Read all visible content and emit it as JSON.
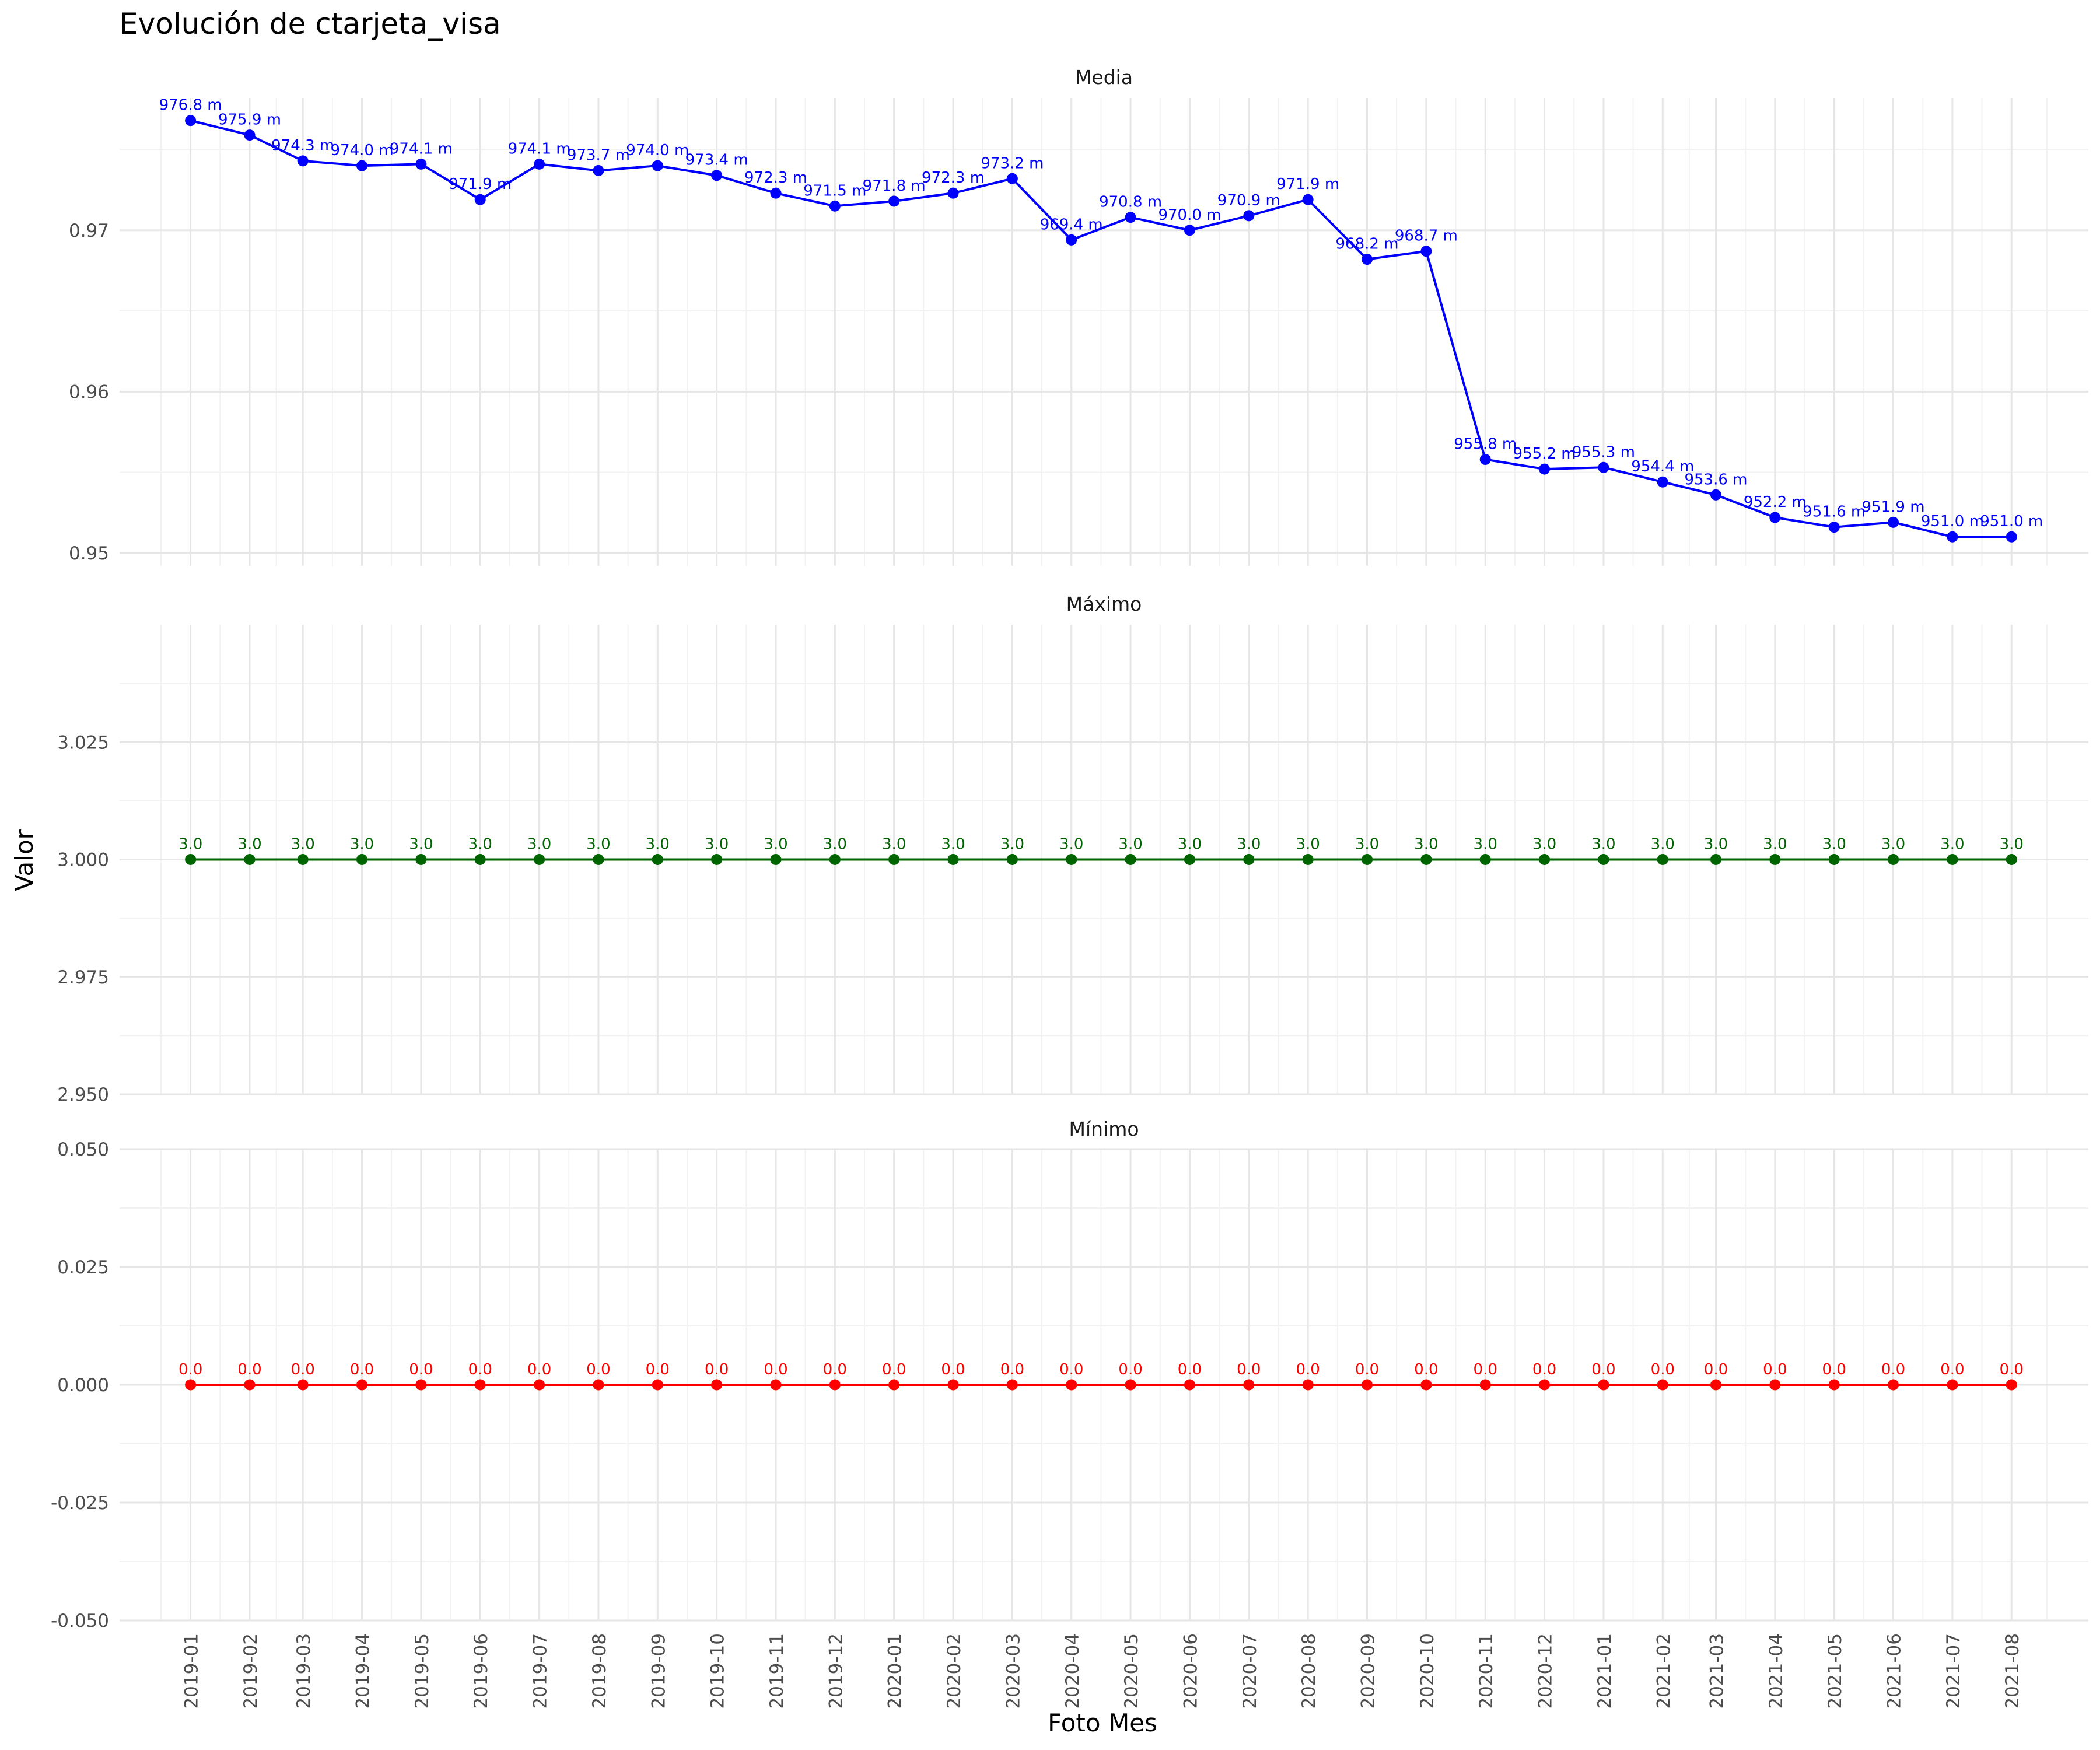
{
  "title": "Evolución de ctarjeta_visa",
  "xlabel": "Foto Mes",
  "ylabel": "Valor",
  "chart_data": {
    "type": "line",
    "categories": [
      "2019-01",
      "2019-02",
      "2019-03",
      "2019-04",
      "2019-05",
      "2019-06",
      "2019-07",
      "2019-08",
      "2019-09",
      "2019-10",
      "2019-11",
      "2019-12",
      "2020-01",
      "2020-02",
      "2020-03",
      "2020-04",
      "2020-05",
      "2020-06",
      "2020-07",
      "2020-08",
      "2020-09",
      "2020-10",
      "2020-11",
      "2020-12",
      "2021-01",
      "2021-02",
      "2021-03",
      "2021-04",
      "2021-05",
      "2021-06",
      "2021-07",
      "2021-08"
    ],
    "x_positions": [
      0,
      1,
      1.9,
      2.9,
      3.9,
      4.9,
      5.9,
      6.9,
      7.9,
      8.9,
      9.9,
      10.9,
      11.9,
      12.9,
      13.9,
      14.9,
      15.9,
      16.9,
      17.9,
      18.9,
      19.9,
      20.9,
      21.9,
      22.9,
      23.9,
      24.9,
      25.8,
      26.8,
      27.8,
      28.8,
      29.8,
      30.8
    ],
    "x_range": [
      -1.2,
      32.1
    ],
    "grid": true,
    "panels": [
      {
        "strip": "Media",
        "color": "#0000ff",
        "ylim": [
          0.9492,
          0.9782
        ],
        "yticks": [
          0.95,
          0.96,
          0.97
        ],
        "ytick_labels": [
          "0.95",
          "0.96",
          "0.97"
        ],
        "values": [
          0.9768,
          0.9759,
          0.9743,
          0.974,
          0.9741,
          0.9719,
          0.9741,
          0.9737,
          0.974,
          0.9734,
          0.9723,
          0.9715,
          0.9718,
          0.9723,
          0.9732,
          0.9694,
          0.9708,
          0.97,
          0.9709,
          0.9719,
          0.9682,
          0.9687,
          0.9558,
          0.9552,
          0.9553,
          0.9544,
          0.9536,
          0.9522,
          0.9516,
          0.9519,
          0.951,
          0.951
        ],
        "labels": [
          "976.8 m",
          "975.9 m",
          "974.3 m",
          "974.0 m",
          "974.1 m",
          "971.9 m",
          "974.1 m",
          "973.7 m",
          "974.0 m",
          "973.4 m",
          "972.3 m",
          "971.5 m",
          "971.8 m",
          "972.3 m",
          "973.2 m",
          "969.4 m",
          "970.8 m",
          "970.0 m",
          "970.9 m",
          "971.9 m",
          "968.2 m",
          "968.7 m",
          "955.8 m",
          "955.2 m",
          "955.3 m",
          "954.4 m",
          "953.6 m",
          "952.2 m",
          "951.6 m",
          "951.9 m",
          "951.0 m",
          "951.0 m"
        ]
      },
      {
        "strip": "Máximo",
        "color": "#006400",
        "ylim": [
          2.95,
          3.05
        ],
        "yticks": [
          2.95,
          2.975,
          3.0,
          3.025
        ],
        "ytick_labels": [
          "2.950",
          "2.975",
          "3.000",
          "3.025"
        ],
        "values": [
          3,
          3,
          3,
          3,
          3,
          3,
          3,
          3,
          3,
          3,
          3,
          3,
          3,
          3,
          3,
          3,
          3,
          3,
          3,
          3,
          3,
          3,
          3,
          3,
          3,
          3,
          3,
          3,
          3,
          3,
          3,
          3
        ],
        "labels": [
          "3.0",
          "3.0",
          "3.0",
          "3.0",
          "3.0",
          "3.0",
          "3.0",
          "3.0",
          "3.0",
          "3.0",
          "3.0",
          "3.0",
          "3.0",
          "3.0",
          "3.0",
          "3.0",
          "3.0",
          "3.0",
          "3.0",
          "3.0",
          "3.0",
          "3.0",
          "3.0",
          "3.0",
          "3.0",
          "3.0",
          "3.0",
          "3.0",
          "3.0",
          "3.0",
          "3.0",
          "3.0"
        ]
      },
      {
        "strip": "Mínimo",
        "color": "#ff0000",
        "ylim": [
          -0.05,
          0.05
        ],
        "yticks": [
          -0.05,
          -0.025,
          0.0,
          0.025,
          0.05
        ],
        "ytick_labels": [
          "-0.050",
          "-0.025",
          "0.000",
          "0.025",
          "0.050"
        ],
        "values": [
          0,
          0,
          0,
          0,
          0,
          0,
          0,
          0,
          0,
          0,
          0,
          0,
          0,
          0,
          0,
          0,
          0,
          0,
          0,
          0,
          0,
          0,
          0,
          0,
          0,
          0,
          0,
          0,
          0,
          0,
          0,
          0
        ],
        "labels": [
          "0.0",
          "0.0",
          "0.0",
          "0.0",
          "0.0",
          "0.0",
          "0.0",
          "0.0",
          "0.0",
          "0.0",
          "0.0",
          "0.0",
          "0.0",
          "0.0",
          "0.0",
          "0.0",
          "0.0",
          "0.0",
          "0.0",
          "0.0",
          "0.0",
          "0.0",
          "0.0",
          "0.0",
          "0.0",
          "0.0",
          "0.0",
          "0.0",
          "0.0",
          "0.0",
          "0.0",
          "0.0"
        ]
      }
    ]
  }
}
